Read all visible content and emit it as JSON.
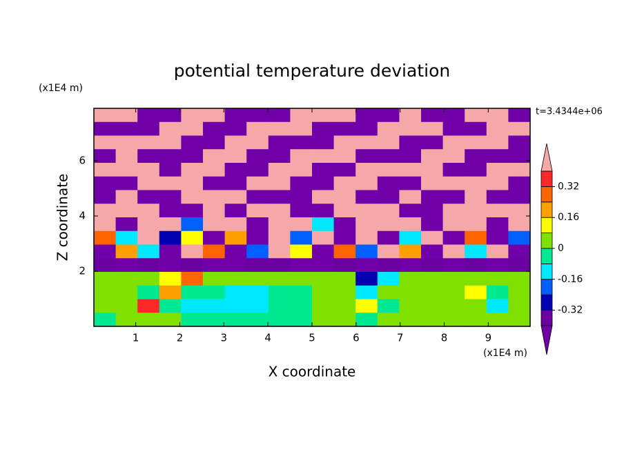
{
  "chart_data": {
    "type": "contourf",
    "title": "potential temperature deviation",
    "xlabel": "X coordinate",
    "ylabel": "Z coordinate",
    "xunit": "(x1E4 m)",
    "yunit": "(x1E4 m)",
    "time_label": "t=3.4344e+06",
    "xlim": [
      0.05,
      9.95
    ],
    "ylim": [
      0,
      7.9
    ],
    "xticks": [
      1,
      2,
      3,
      4,
      5,
      6,
      7,
      8,
      9
    ],
    "yticks": [
      2,
      4,
      6
    ],
    "levels": [
      -0.4,
      -0.32,
      -0.24,
      -0.16,
      -0.08,
      0,
      0.08,
      0.16,
      0.24,
      0.32,
      0.4
    ],
    "colors": [
      "#7000a8",
      "#6a00a0",
      "#0000b0",
      "#0060ff",
      "#00e8ff",
      "#00e890",
      "#80e000",
      "#ffff00",
      "#ffa000",
      "#ff6400",
      "#ff2828",
      "#f4a8a8"
    ],
    "cbticks": [
      -0.32,
      -0.16,
      0,
      0.16,
      0.32
    ],
    "z": [
      [
        0.5,
        0.5,
        -0.5,
        -0.5,
        0.5,
        0.5,
        -0.5,
        -0.5,
        -0.5,
        0.5,
        0.5,
        0.5,
        -0.5,
        -0.5,
        0.5,
        -0.5,
        -0.5,
        0.5,
        0.5,
        -0.5
      ],
      [
        -0.5,
        -0.5,
        -0.5,
        0.5,
        0.5,
        -0.5,
        -0.5,
        0.5,
        0.5,
        0.5,
        -0.5,
        -0.5,
        -0.5,
        0.5,
        0.5,
        0.5,
        -0.5,
        -0.5,
        0.5,
        0.5
      ],
      [
        0.5,
        0.5,
        0.5,
        0.5,
        -0.5,
        -0.5,
        0.5,
        0.5,
        -0.5,
        -0.5,
        -0.5,
        0.5,
        0.5,
        0.5,
        -0.5,
        -0.5,
        0.5,
        0.5,
        0.5,
        -0.5
      ],
      [
        -0.5,
        0.5,
        -0.5,
        -0.5,
        -0.5,
        0.5,
        0.5,
        -0.5,
        -0.5,
        0.5,
        0.5,
        0.5,
        -0.5,
        -0.5,
        -0.5,
        0.5,
        0.5,
        -0.5,
        -0.5,
        -0.5
      ],
      [
        0.5,
        0.5,
        0.5,
        -0.5,
        0.5,
        0.5,
        -0.5,
        -0.5,
        0.5,
        0.5,
        -0.5,
        -0.5,
        0.5,
        0.5,
        0.5,
        0.5,
        -0.5,
        -0.5,
        0.5,
        0.5
      ],
      [
        -0.5,
        -0.5,
        0.5,
        0.5,
        0.5,
        -0.5,
        -0.5,
        0.5,
        0.5,
        -0.5,
        -0.5,
        0.5,
        0.5,
        -0.5,
        -0.5,
        0.5,
        0.5,
        0.5,
        0.5,
        -0.5
      ],
      [
        -0.5,
        0.5,
        -0.5,
        -0.5,
        0.5,
        0.5,
        0.5,
        -0.5,
        -0.5,
        -0.5,
        0.5,
        0.5,
        -0.5,
        -0.5,
        0.5,
        -0.5,
        -0.5,
        0.5,
        -0.5,
        -0.5
      ],
      [
        0.5,
        0.5,
        0.5,
        -0.5,
        -0.5,
        0.5,
        -0.5,
        0.5,
        0.5,
        -0.5,
        -0.5,
        0.5,
        0.5,
        0.5,
        -0.5,
        -0.5,
        0.5,
        0.5,
        0.5,
        0.5
      ],
      [
        0.5,
        -0.5,
        0.5,
        0.5,
        -0.2,
        0.5,
        0.5,
        -0.5,
        0.5,
        0.5,
        -0.1,
        -0.5,
        0.5,
        0.5,
        0.5,
        -0.5,
        0.5,
        0.5,
        -0.5,
        0.5
      ],
      [
        0.3,
        -0.1,
        0.5,
        -0.3,
        0.1,
        -0.5,
        0.2,
        -0.5,
        0.5,
        -0.2,
        0.5,
        -0.5,
        0.5,
        -0.5,
        -0.1,
        0.5,
        -0.5,
        0.3,
        -0.5,
        -0.2
      ],
      [
        -0.5,
        0.2,
        -0.1,
        -0.5,
        0.5,
        0.3,
        -0.5,
        -0.2,
        0.5,
        0.1,
        -0.5,
        0.3,
        -0.2,
        0.5,
        0.2,
        -0.5,
        0.5,
        -0.1,
        0.5,
        -0.5
      ],
      [
        -0.35,
        -0.45,
        -0.35,
        -0.45,
        -0.35,
        -0.45,
        -0.45,
        -0.35,
        -0.35,
        -0.45,
        -0.45,
        -0.35,
        -0.45,
        -0.35,
        -0.45,
        -0.35,
        -0.45,
        -0.35,
        -0.45,
        -0.35
      ],
      [
        0.04,
        0.04,
        0.04,
        0.12,
        0.28,
        0.04,
        0.04,
        0.04,
        0.04,
        0.04,
        0.04,
        0.04,
        -0.3,
        -0.1,
        0.04,
        0.04,
        0.04,
        0.04,
        0.04,
        0.04
      ],
      [
        0.04,
        0.04,
        -0.04,
        0.2,
        -0.04,
        -0.04,
        -0.1,
        -0.1,
        -0.04,
        -0.04,
        0.04,
        0.04,
        -0.1,
        0.04,
        0.04,
        0.04,
        0.04,
        0.12,
        -0.04,
        0.04
      ],
      [
        0.04,
        0.04,
        0.35,
        -0.04,
        -0.1,
        -0.1,
        -0.1,
        -0.1,
        -0.04,
        -0.04,
        0.04,
        0.04,
        0.12,
        -0.04,
        0.04,
        0.04,
        0.04,
        0.04,
        -0.1,
        0.04
      ],
      [
        -0.04,
        0.04,
        0.04,
        0.04,
        -0.04,
        -0.04,
        -0.04,
        -0.04,
        -0.04,
        -0.04,
        0.04,
        0.04,
        -0.04,
        0.04,
        0.04,
        0.04,
        0.04,
        0.04,
        0.04,
        0.04
      ]
    ]
  }
}
